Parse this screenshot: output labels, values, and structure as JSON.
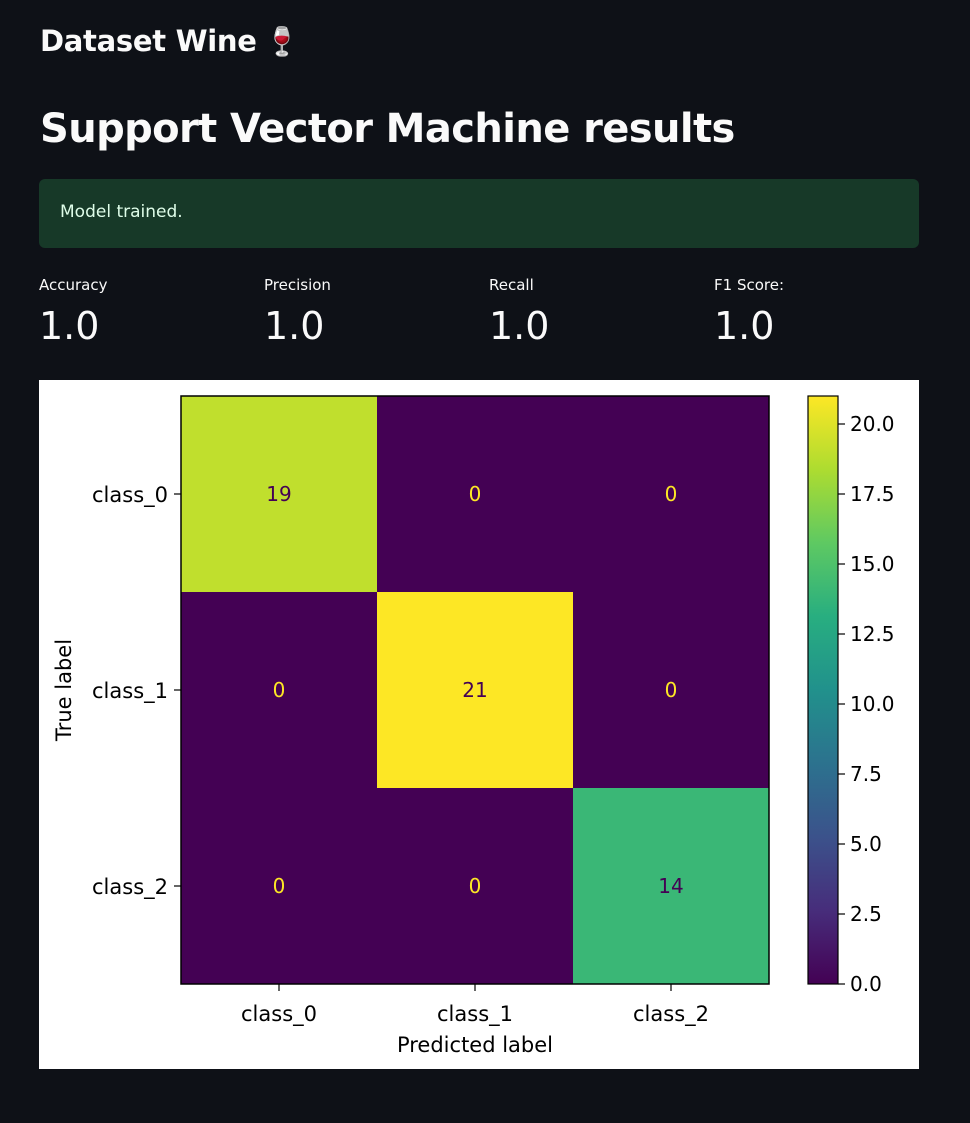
{
  "header": {
    "subtitle": "Dataset Wine",
    "subtitle_icon": "🍷"
  },
  "page": {
    "title": "Support Vector Machine results"
  },
  "alert": {
    "text": "Model trained."
  },
  "metrics": [
    {
      "label": "Accuracy",
      "value": "1.0"
    },
    {
      "label": "Precision",
      "value": "1.0"
    },
    {
      "label": "Recall",
      "value": "1.0"
    },
    {
      "label": "F1 Score:",
      "value": "1.0"
    }
  ],
  "chart_data": {
    "type": "heatmap",
    "row_categories": [
      "class_0",
      "class_1",
      "class_2"
    ],
    "col_categories": [
      "class_0",
      "class_1",
      "class_2"
    ],
    "matrix": [
      [
        19,
        0,
        0
      ],
      [
        0,
        21,
        0
      ],
      [
        0,
        0,
        14
      ]
    ],
    "xlabel": "Predicted label",
    "ylabel": "True label",
    "colorbar": {
      "min": 0,
      "max": 21,
      "ticks": [
        "0.0",
        "2.5",
        "5.0",
        "7.5",
        "10.0",
        "12.5",
        "15.0",
        "17.5",
        "20.0"
      ],
      "colormap": "viridis"
    }
  }
}
